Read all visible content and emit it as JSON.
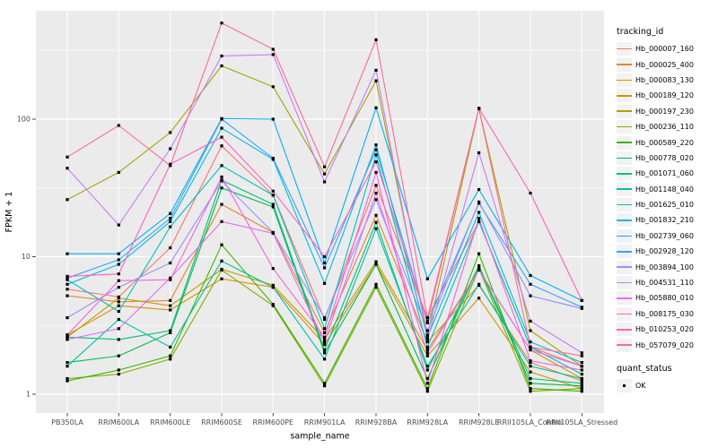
{
  "axes": {
    "x_title": "sample_name",
    "y_title": "FPKM + 1",
    "y_ticks": [
      "1",
      "10",
      "100"
    ]
  },
  "legend": {
    "tracking_title": "tracking_id",
    "quant_title": "quant_status",
    "quant_items": [
      {
        "label": "OK",
        "marker": "black-square"
      }
    ]
  },
  "colors": {
    "panel_background": "#EBEBEB",
    "grid": "#FFFFFF",
    "point": "#000000",
    "tick_label": "#4D4D4D",
    "legend_key_background": "#F2F2F2"
  },
  "chart_data": {
    "type": "line",
    "title": "",
    "xlabel": "sample_name",
    "ylabel": "FPKM + 1",
    "x_scale": "categorical",
    "y_scale": "log10",
    "ylim": [
      0.75,
      620
    ],
    "grid": "on",
    "legend_position": "right",
    "point_marker": "small black square on every data point (quant_status OK)",
    "categories": [
      "PB350LA",
      "RRIM600LA",
      "RRIM600LE",
      "RRIM600SE",
      "RRIM600PE",
      "RRIM901LA",
      "RRIM928BA",
      "RRIM928LA",
      "RRIM928LE",
      "RRII105LA_Control",
      "RRII105LA_Stressed"
    ],
    "series": [
      {
        "name": "Hb_000007_160",
        "color": "#F8766D",
        "values": [
          5.8,
          5.1,
          11.6,
          64,
          28,
          3.5,
          33,
          3.6,
          18,
          2.2,
          1.6
        ]
      },
      {
        "name": "Hb_000025_400",
        "color": "#EA8331",
        "values": [
          5.2,
          4.7,
          4.8,
          24,
          15,
          2.8,
          20,
          2.4,
          6.2,
          1.7,
          1.25
        ]
      },
      {
        "name": "Hb_000083_130",
        "color": "#D89000",
        "values": [
          2.7,
          4.4,
          4.1,
          6.9,
          6.0,
          2.3,
          8.8,
          1.9,
          5.0,
          1.45,
          1.1
        ]
      },
      {
        "name": "Hb_000189_120",
        "color": "#C09B00",
        "values": [
          2.6,
          5.0,
          4.4,
          8.1,
          6.2,
          2.5,
          9.2,
          2.1,
          8.0,
          2.1,
          1.3
        ]
      },
      {
        "name": "Hb_000197_230",
        "color": "#A3A500",
        "values": [
          26,
          41,
          80,
          244,
          172,
          40,
          190,
          2.7,
          119,
          2.9,
          1.6
        ]
      },
      {
        "name": "Hb_000236_110",
        "color": "#7CAE00",
        "values": [
          1.3,
          1.4,
          1.8,
          8.0,
          4.4,
          1.15,
          6.0,
          1.05,
          8.2,
          1.05,
          1.1
        ]
      },
      {
        "name": "Hb_000589_220",
        "color": "#39B600",
        "values": [
          1.25,
          1.5,
          1.9,
          12.2,
          4.5,
          1.2,
          6.3,
          1.1,
          10.5,
          1.1,
          1.05
        ]
      },
      {
        "name": "Hb_000778_020",
        "color": "#00BB4E",
        "values": [
          1.7,
          1.9,
          2.8,
          31.6,
          23,
          2.0,
          8.8,
          1.3,
          8.5,
          1.2,
          1.15
        ]
      },
      {
        "name": "Hb_001071_060",
        "color": "#00BF7D",
        "values": [
          2.6,
          2.5,
          2.9,
          36,
          24,
          2.1,
          17.8,
          1.5,
          8.6,
          1.3,
          1.2
        ]
      },
      {
        "name": "Hb_001148_040",
        "color": "#00C1A3",
        "values": [
          1.6,
          3.5,
          2.2,
          9.3,
          6.0,
          1.8,
          16,
          1.6,
          6.3,
          1.6,
          1.3
        ]
      },
      {
        "name": "Hb_001625_010",
        "color": "#00BFC4",
        "values": [
          6.8,
          4.0,
          16.5,
          46,
          28,
          3.0,
          55,
          2.2,
          18,
          2.2,
          1.4
        ]
      },
      {
        "name": "Hb_001832_210",
        "color": "#00BAE0",
        "values": [
          6.3,
          8.8,
          18,
          86,
          51,
          6.4,
          65,
          2.6,
          21,
          2.4,
          1.7
        ]
      },
      {
        "name": "Hb_002739_060",
        "color": "#00B0F6",
        "values": [
          10.5,
          10.5,
          20.6,
          101,
          100,
          9.0,
          121,
          6.9,
          30.8,
          7.3,
          4.8
        ]
      },
      {
        "name": "Hb_002928_120",
        "color": "#35A2FF",
        "values": [
          7.0,
          9.5,
          19,
          100,
          52,
          8.3,
          60,
          3.3,
          24.5,
          6.3,
          4.3
        ]
      },
      {
        "name": "Hb_003894_100",
        "color": "#9590FF",
        "values": [
          3.6,
          6.0,
          9.0,
          35.5,
          15,
          3.6,
          26,
          2.9,
          25,
          5.2,
          4.2
        ]
      },
      {
        "name": "Hb_004531_110",
        "color": "#C77CFF",
        "values": [
          44,
          17,
          61,
          288,
          295,
          35,
          227,
          2.5,
          57,
          3.4,
          2.0
        ]
      },
      {
        "name": "Hb_005880_010",
        "color": "#E76BF3",
        "values": [
          2.5,
          3.0,
          7.0,
          18,
          14.8,
          2.4,
          29,
          2.0,
          8.0,
          2.1,
          1.6
        ]
      },
      {
        "name": "Hb_008175_030",
        "color": "#FA62DB",
        "values": [
          2.7,
          6.7,
          6.8,
          38,
          8.2,
          2.6,
          41,
          1.2,
          19,
          1.75,
          1.5
        ]
      },
      {
        "name": "Hb_010253_020",
        "color": "#FF62BC",
        "values": [
          7.2,
          7.5,
          47,
          74,
          30,
          10,
          49,
          3.4,
          120,
          29,
          4.8
        ]
      },
      {
        "name": "Hb_057079_020",
        "color": "#FF6A98",
        "values": [
          53,
          90,
          46,
          500,
          322,
          45,
          378,
          3.6,
          119,
          2.2,
          1.9
        ]
      }
    ]
  }
}
